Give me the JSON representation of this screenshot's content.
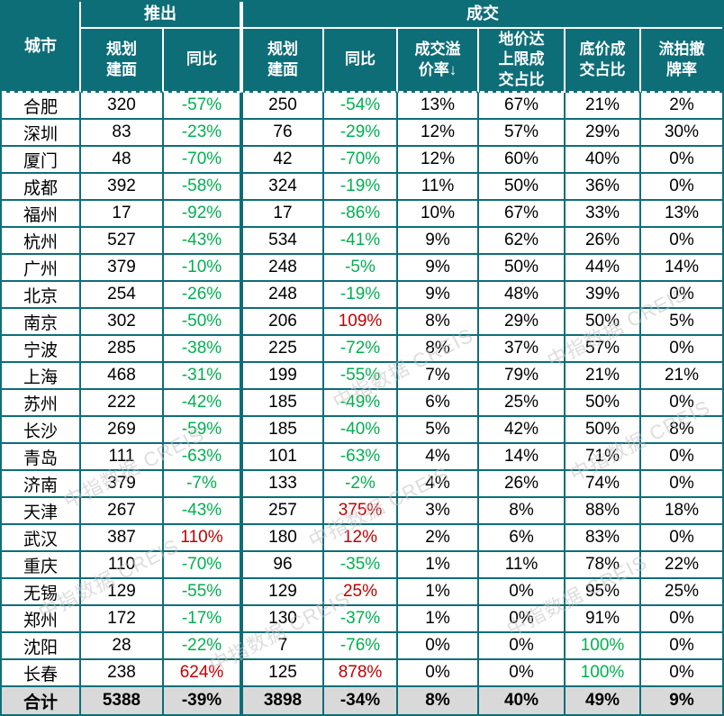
{
  "header": {
    "city": "城市",
    "group_launch": "推出",
    "group_deal": "成交",
    "sub": [
      "规划\n建面",
      "同比",
      "规划\n建面",
      "同比",
      "成交溢\n价率↓",
      "地价达\n上限成\n交占比",
      "底价成\n交占比",
      "流拍撤\n牌率"
    ]
  },
  "colors": {
    "header_teal": "#0e6e78",
    "positive_red": "#c00000",
    "negative_green": "#00b050",
    "total_row_bg": "#d9d9d9"
  },
  "watermark": {
    "text": "中指数据 CREIS"
  },
  "chart_data": {
    "type": "table",
    "title": "城市土地推出与成交统计",
    "columns": [
      "城市",
      "推出-规划建面",
      "推出-同比",
      "成交-规划建面",
      "成交-同比",
      "成交溢价率↓",
      "地价达上限成交占比",
      "底价成交占比",
      "流拍撤牌率"
    ],
    "rows": [
      {
        "city": "合肥",
        "values": [
          "320",
          "-57%",
          "250",
          "-54%",
          "13%",
          "67%",
          "21%",
          "2%"
        ],
        "colors": [
          "k",
          "g",
          "k",
          "g",
          "k",
          "k",
          "k",
          "k"
        ],
        "total": false
      },
      {
        "city": "深圳",
        "values": [
          "83",
          "-23%",
          "76",
          "-29%",
          "12%",
          "57%",
          "29%",
          "30%"
        ],
        "colors": [
          "k",
          "g",
          "k",
          "g",
          "k",
          "k",
          "k",
          "k"
        ],
        "total": false
      },
      {
        "city": "厦门",
        "values": [
          "48",
          "-70%",
          "42",
          "-70%",
          "12%",
          "60%",
          "40%",
          "0%"
        ],
        "colors": [
          "k",
          "g",
          "k",
          "g",
          "k",
          "k",
          "k",
          "k"
        ],
        "total": false
      },
      {
        "city": "成都",
        "values": [
          "392",
          "-58%",
          "324",
          "-19%",
          "11%",
          "50%",
          "36%",
          "0%"
        ],
        "colors": [
          "k",
          "g",
          "k",
          "g",
          "k",
          "k",
          "k",
          "k"
        ],
        "total": false
      },
      {
        "city": "福州",
        "values": [
          "17",
          "-92%",
          "17",
          "-86%",
          "10%",
          "67%",
          "33%",
          "13%"
        ],
        "colors": [
          "k",
          "g",
          "k",
          "g",
          "k",
          "k",
          "k",
          "k"
        ],
        "total": false
      },
      {
        "city": "杭州",
        "values": [
          "527",
          "-43%",
          "534",
          "-41%",
          "9%",
          "62%",
          "26%",
          "0%"
        ],
        "colors": [
          "k",
          "g",
          "k",
          "g",
          "k",
          "k",
          "k",
          "k"
        ],
        "total": false
      },
      {
        "city": "广州",
        "values": [
          "379",
          "-10%",
          "248",
          "-5%",
          "9%",
          "50%",
          "44%",
          "14%"
        ],
        "colors": [
          "k",
          "g",
          "k",
          "g",
          "k",
          "k",
          "k",
          "k"
        ],
        "total": false
      },
      {
        "city": "北京",
        "values": [
          "254",
          "-26%",
          "248",
          "-19%",
          "9%",
          "48%",
          "39%",
          "0%"
        ],
        "colors": [
          "k",
          "g",
          "k",
          "g",
          "k",
          "k",
          "k",
          "k"
        ],
        "total": false
      },
      {
        "city": "南京",
        "values": [
          "302",
          "-50%",
          "206",
          "109%",
          "8%",
          "29%",
          "50%",
          "5%"
        ],
        "colors": [
          "k",
          "g",
          "k",
          "r",
          "k",
          "k",
          "k",
          "k"
        ],
        "total": false
      },
      {
        "city": "宁波",
        "values": [
          "285",
          "-38%",
          "225",
          "-72%",
          "8%",
          "37%",
          "57%",
          "0%"
        ],
        "colors": [
          "k",
          "g",
          "k",
          "g",
          "k",
          "k",
          "k",
          "k"
        ],
        "total": false
      },
      {
        "city": "上海",
        "values": [
          "468",
          "-31%",
          "199",
          "-55%",
          "7%",
          "79%",
          "21%",
          "21%"
        ],
        "colors": [
          "k",
          "g",
          "k",
          "g",
          "k",
          "k",
          "k",
          "k"
        ],
        "total": false
      },
      {
        "city": "苏州",
        "values": [
          "222",
          "-42%",
          "185",
          "-49%",
          "6%",
          "25%",
          "50%",
          "0%"
        ],
        "colors": [
          "k",
          "g",
          "k",
          "g",
          "k",
          "k",
          "k",
          "k"
        ],
        "total": false
      },
      {
        "city": "长沙",
        "values": [
          "269",
          "-59%",
          "185",
          "-40%",
          "5%",
          "42%",
          "50%",
          "8%"
        ],
        "colors": [
          "k",
          "g",
          "k",
          "g",
          "k",
          "k",
          "k",
          "k"
        ],
        "total": false
      },
      {
        "city": "青岛",
        "values": [
          "111",
          "-63%",
          "101",
          "-63%",
          "4%",
          "14%",
          "71%",
          "0%"
        ],
        "colors": [
          "k",
          "g",
          "k",
          "g",
          "k",
          "k",
          "k",
          "k"
        ],
        "total": false
      },
      {
        "city": "济南",
        "values": [
          "379",
          "-7%",
          "133",
          "-2%",
          "4%",
          "26%",
          "74%",
          "0%"
        ],
        "colors": [
          "k",
          "g",
          "k",
          "g",
          "k",
          "k",
          "k",
          "k"
        ],
        "total": false
      },
      {
        "city": "天津",
        "values": [
          "267",
          "-43%",
          "257",
          "375%",
          "3%",
          "8%",
          "88%",
          "18%"
        ],
        "colors": [
          "k",
          "g",
          "k",
          "r",
          "k",
          "k",
          "k",
          "k"
        ],
        "total": false
      },
      {
        "city": "武汉",
        "values": [
          "387",
          "110%",
          "180",
          "12%",
          "2%",
          "6%",
          "83%",
          "0%"
        ],
        "colors": [
          "k",
          "r",
          "k",
          "r",
          "k",
          "k",
          "k",
          "k"
        ],
        "total": false
      },
      {
        "city": "重庆",
        "values": [
          "110",
          "-70%",
          "96",
          "-35%",
          "1%",
          "11%",
          "78%",
          "22%"
        ],
        "colors": [
          "k",
          "g",
          "k",
          "g",
          "k",
          "k",
          "k",
          "k"
        ],
        "total": false
      },
      {
        "city": "无锡",
        "values": [
          "129",
          "-55%",
          "129",
          "25%",
          "1%",
          "0%",
          "95%",
          "25%"
        ],
        "colors": [
          "k",
          "g",
          "k",
          "r",
          "k",
          "k",
          "k",
          "k"
        ],
        "total": false
      },
      {
        "city": "郑州",
        "values": [
          "172",
          "-17%",
          "130",
          "-37%",
          "1%",
          "0%",
          "91%",
          "0%"
        ],
        "colors": [
          "k",
          "g",
          "k",
          "g",
          "k",
          "k",
          "k",
          "k"
        ],
        "total": false
      },
      {
        "city": "沈阳",
        "values": [
          "28",
          "-22%",
          "7",
          "-76%",
          "0%",
          "0%",
          "100%",
          "0%"
        ],
        "colors": [
          "k",
          "g",
          "k",
          "g",
          "k",
          "k",
          "g",
          "k"
        ],
        "total": false
      },
      {
        "city": "长春",
        "values": [
          "238",
          "624%",
          "125",
          "878%",
          "0%",
          "0%",
          "100%",
          "0%"
        ],
        "colors": [
          "k",
          "r",
          "k",
          "r",
          "k",
          "k",
          "g",
          "k"
        ],
        "total": false
      },
      {
        "city": "合计",
        "values": [
          "5388",
          "-39%",
          "3898",
          "-34%",
          "8%",
          "40%",
          "49%",
          "9%"
        ],
        "colors": [
          "k",
          "k",
          "k",
          "k",
          "k",
          "k",
          "k",
          "k"
        ],
        "total": true
      }
    ]
  }
}
